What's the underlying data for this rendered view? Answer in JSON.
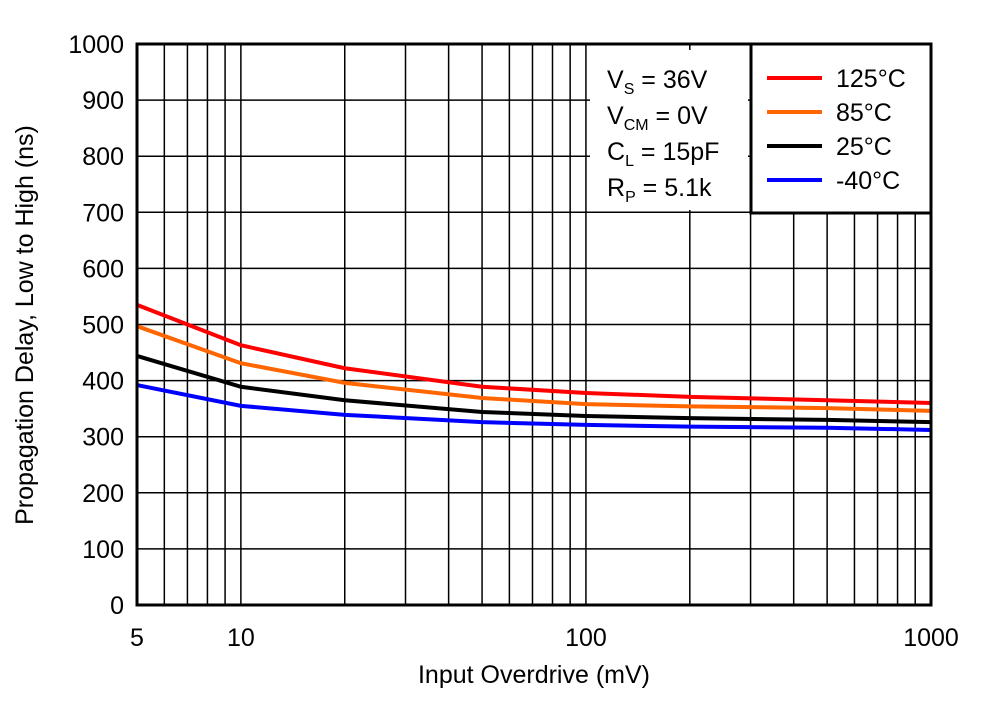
{
  "chart_data": {
    "type": "line",
    "xlabel": "Input Overdrive (mV)",
    "ylabel": "Propagation Delay, Low to High (ns)",
    "xscale": "log",
    "xlim": [
      5,
      1000
    ],
    "ylim": [
      0,
      1000
    ],
    "grid": true,
    "xticks": [
      5,
      10,
      100,
      1000
    ],
    "xtick_labels": [
      "5",
      "10",
      "100",
      "1000"
    ],
    "yticks": [
      0,
      100,
      200,
      300,
      400,
      500,
      600,
      700,
      800,
      900,
      1000
    ],
    "ytick_labels": [
      "0",
      "100",
      "200",
      "300",
      "400",
      "500",
      "600",
      "700",
      "800",
      "900",
      "1000"
    ],
    "legend_position": "top-right",
    "conditions": [
      {
        "sym": "V",
        "sub": "S",
        "rest": " = 36V"
      },
      {
        "sym": "V",
        "sub": "CM",
        "rest": " = 0V"
      },
      {
        "sym": "C",
        "sub": "L",
        "rest": " = 15pF"
      },
      {
        "sym": "R",
        "sub": "P",
        "rest": " = 5.1k"
      }
    ],
    "x": [
      5,
      10,
      20,
      50,
      100,
      200,
      500,
      1000
    ],
    "series": [
      {
        "name": "125°C",
        "color": "#ff0000",
        "values": [
          535,
          463,
          422,
          389,
          378,
          371,
          365,
          360
        ]
      },
      {
        "name": "85°C",
        "color": "#ff6600",
        "values": [
          497,
          431,
          396,
          369,
          358,
          354,
          351,
          346
        ]
      },
      {
        "name": "25°C",
        "color": "#000000",
        "values": [
          444,
          389,
          365,
          344,
          337,
          333,
          330,
          326
        ]
      },
      {
        "name": "-40°C",
        "color": "#0000ff",
        "values": [
          392,
          355,
          339,
          326,
          321,
          318,
          316,
          312
        ]
      }
    ]
  }
}
